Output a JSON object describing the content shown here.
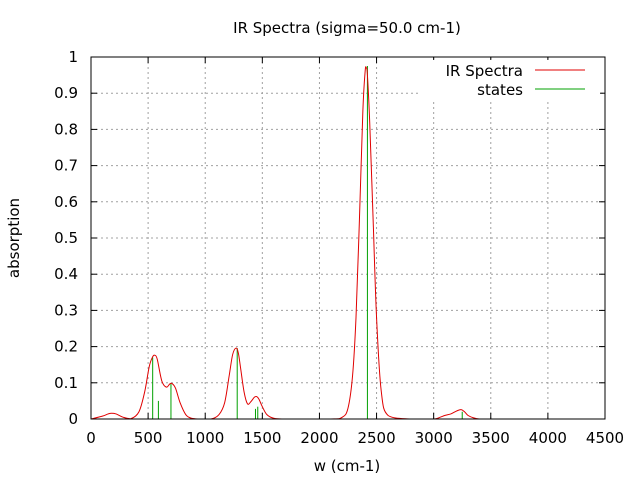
{
  "chart_data": {
    "type": "line",
    "title": "IR Spectra (sigma=50.0 cm-1)",
    "xlabel": "w (cm-1)",
    "ylabel": "absorption",
    "xlim": [
      0,
      4500
    ],
    "ylim": [
      0,
      1
    ],
    "x_ticks": [
      0,
      500,
      1000,
      1500,
      2000,
      2500,
      3000,
      3500,
      4000,
      4500
    ],
    "y_ticks": [
      0,
      0.1,
      0.2,
      0.3,
      0.4,
      0.5,
      0.6,
      0.7,
      0.8,
      0.9,
      1
    ],
    "grid": true,
    "legend_position": "top-right",
    "sigma": 50.0,
    "series": [
      {
        "name": "IR Spectra",
        "kind": "curve",
        "color": "#e00000",
        "x": [
          0,
          100,
          150,
          180,
          220,
          280,
          350,
          420,
          470,
          510,
          540,
          560,
          580,
          620,
          660,
          690,
          710,
          740,
          780,
          830,
          880,
          950,
          1050,
          1120,
          1170,
          1210,
          1240,
          1270,
          1290,
          1310,
          1340,
          1370,
          1400,
          1430,
          1450,
          1470,
          1500,
          1540,
          1600,
          1700,
          2100,
          2200,
          2250,
          2290,
          2320,
          2350,
          2380,
          2400,
          2410,
          2420,
          2440,
          2470,
          2500,
          2540,
          2600,
          2800,
          3000,
          3050,
          3100,
          3150,
          3200,
          3240,
          3270,
          3300,
          3350,
          3400,
          3500,
          4500
        ],
        "y": [
          0,
          0.008,
          0.014,
          0.016,
          0.014,
          0.005,
          0.001,
          0.02,
          0.075,
          0.145,
          0.172,
          0.176,
          0.165,
          0.105,
          0.088,
          0.097,
          0.098,
          0.085,
          0.045,
          0.012,
          0.002,
          0,
          0,
          0.012,
          0.045,
          0.12,
          0.178,
          0.196,
          0.182,
          0.14,
          0.075,
          0.042,
          0.048,
          0.06,
          0.062,
          0.055,
          0.034,
          0.012,
          0.002,
          0,
          0,
          0.005,
          0.03,
          0.12,
          0.28,
          0.55,
          0.85,
          0.96,
          0.97,
          0.95,
          0.82,
          0.55,
          0.28,
          0.08,
          0.01,
          0,
          0,
          0.004,
          0.01,
          0.014,
          0.022,
          0.026,
          0.02,
          0.01,
          0.003,
          0,
          0,
          0
        ]
      },
      {
        "name": "states",
        "kind": "impulses",
        "color": "#00a000",
        "x": [
          540,
          590,
          700,
          1280,
          1440,
          1460,
          2420,
          3250
        ],
        "y": [
          0.17,
          0.05,
          0.098,
          0.196,
          0.028,
          0.034,
          0.975,
          0.02
        ]
      }
    ]
  }
}
